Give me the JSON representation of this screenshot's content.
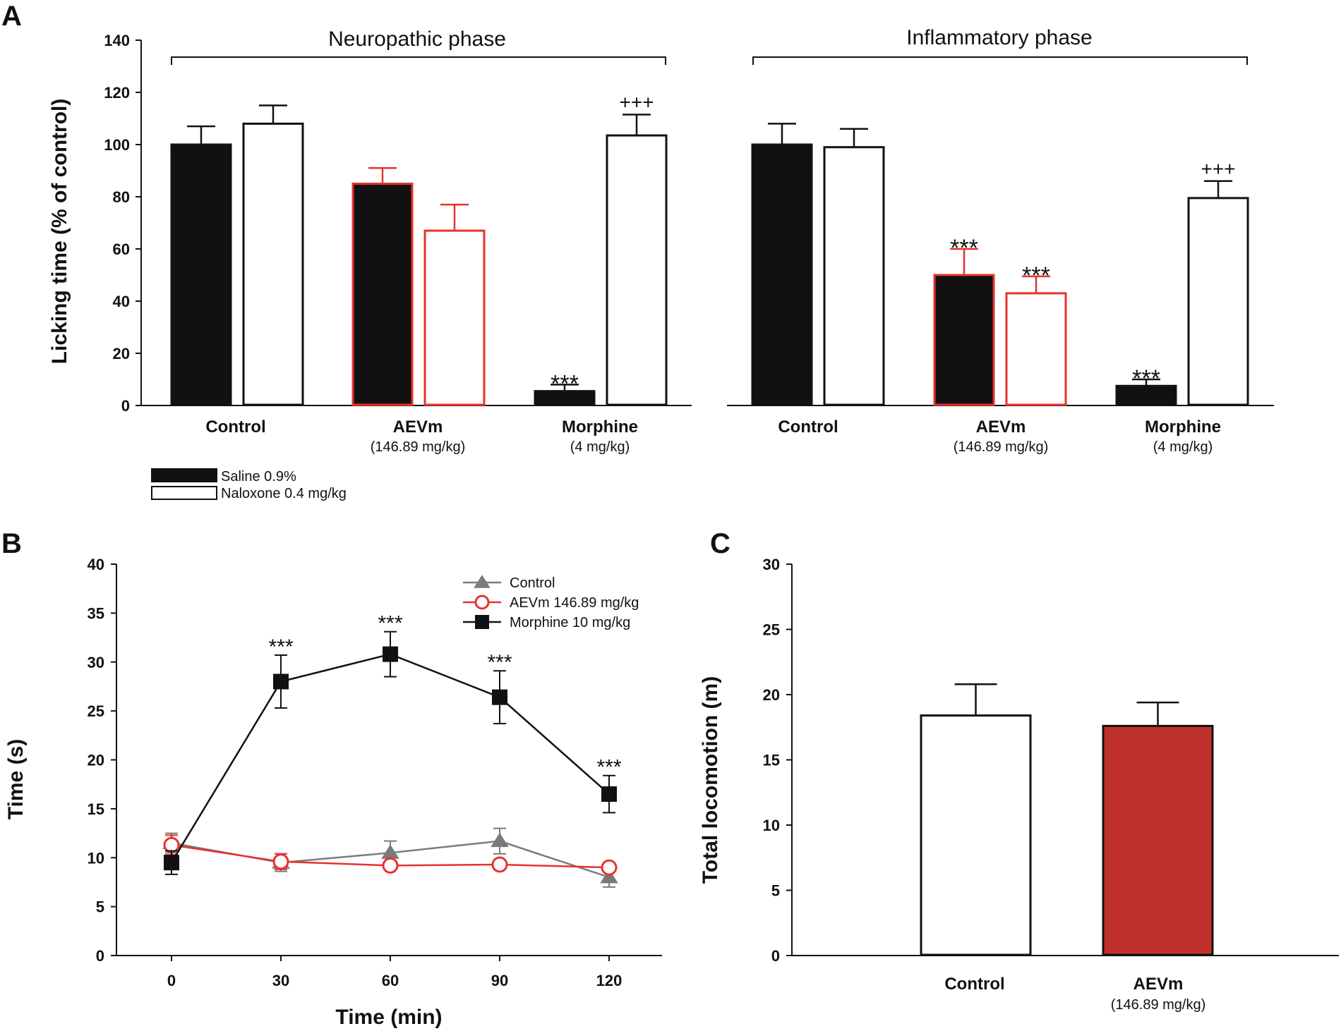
{
  "panels": {
    "a": "A",
    "b": "B",
    "c": "C"
  },
  "colors": {
    "saline": "#111111",
    "naloxone": "#ffffff",
    "aevm": "#e8322e",
    "aevm_fill": "#c0302a",
    "control_line": "#7a7a7a",
    "morphine_line": "#111111"
  },
  "chart_data": [
    {
      "id": "A",
      "type": "bar",
      "ylabel": "Licking time (% of control)",
      "ylim": [
        0,
        140
      ],
      "yticks": [
        "0",
        "20",
        "40",
        "60",
        "80",
        "100",
        "120",
        "140"
      ],
      "legend": [
        {
          "name": "Saline 0.9%",
          "fill": "saline"
        },
        {
          "name": "Naloxone 0.4 mg/kg",
          "fill": "naloxone"
        }
      ],
      "groups": [
        {
          "label": "Control",
          "sublabel": ""
        },
        {
          "label": "AEVm",
          "sublabel": "(146.89 mg/kg)"
        },
        {
          "label": "Morphine",
          "sublabel": "(4 mg/kg)"
        }
      ],
      "phases": [
        {
          "title": "Neuropathic phase",
          "bars": [
            {
              "group": 0,
              "series": "Saline 0.9%",
              "value": 100,
              "err": 7,
              "annot": ""
            },
            {
              "group": 0,
              "series": "Naloxone 0.4 mg/kg",
              "value": 108,
              "err": 7,
              "annot": ""
            },
            {
              "group": 1,
              "series": "Saline 0.9%",
              "value": 85,
              "err": 6,
              "annot": ""
            },
            {
              "group": 1,
              "series": "Naloxone 0.4 mg/kg",
              "value": 67,
              "err": 10,
              "annot": ""
            },
            {
              "group": 2,
              "series": "Saline 0.9%",
              "value": 5.5,
              "err": 2.5,
              "annot": "***"
            },
            {
              "group": 2,
              "series": "Naloxone 0.4 mg/kg",
              "value": 103.5,
              "err": 8,
              "annot": "+++"
            }
          ]
        },
        {
          "title": "Inflammatory phase",
          "bars": [
            {
              "group": 0,
              "series": "Saline 0.9%",
              "value": 100,
              "err": 8,
              "annot": ""
            },
            {
              "group": 0,
              "series": "Naloxone 0.4 mg/kg",
              "value": 99,
              "err": 7,
              "annot": ""
            },
            {
              "group": 1,
              "series": "Saline 0.9%",
              "value": 50,
              "err": 10,
              "annot": "***"
            },
            {
              "group": 1,
              "series": "Naloxone 0.4 mg/kg",
              "value": 43,
              "err": 6.5,
              "annot": "***"
            },
            {
              "group": 2,
              "series": "Saline 0.9%",
              "value": 7.5,
              "err": 2.5,
              "annot": "***"
            },
            {
              "group": 2,
              "series": "Naloxone 0.4 mg/kg",
              "value": 79.5,
              "err": 6.5,
              "annot": "+++"
            }
          ]
        }
      ]
    },
    {
      "id": "B",
      "type": "line",
      "xlabel": "Time (min)",
      "ylabel": "Time (s)",
      "x": [
        0,
        30,
        60,
        90,
        120
      ],
      "xticks": [
        "0",
        "30",
        "60",
        "90",
        "120"
      ],
      "ylim": [
        0,
        40
      ],
      "yticks": [
        "0",
        "5",
        "10",
        "15",
        "20",
        "25",
        "30",
        "35",
        "40"
      ],
      "series": [
        {
          "name": "Control",
          "marker": "triangle",
          "values": [
            11.5,
            9.5,
            10.5,
            11.7,
            8.0
          ],
          "err": [
            1.0,
            0.9,
            1.2,
            1.3,
            1.0
          ]
        },
        {
          "name": "AEVm 146.89 mg/kg",
          "marker": "circle",
          "values": [
            11.3,
            9.6,
            9.2,
            9.3,
            9.0
          ],
          "err": [
            1.0,
            0.8,
            0.0,
            0.0,
            0.0
          ]
        },
        {
          "name": "Morphine 10 mg/kg",
          "marker": "square",
          "values": [
            9.5,
            28.0,
            30.8,
            26.4,
            16.5
          ],
          "err": [
            1.2,
            2.7,
            2.3,
            2.7,
            1.9
          ]
        }
      ],
      "annotations": [
        {
          "x": 30,
          "text": "***"
        },
        {
          "x": 60,
          "text": "***"
        },
        {
          "x": 90,
          "text": "***"
        },
        {
          "x": 120,
          "text": "***"
        }
      ]
    },
    {
      "id": "C",
      "type": "bar",
      "ylabel": "Total locomotion (m)",
      "ylim": [
        0,
        30
      ],
      "yticks": [
        "0",
        "5",
        "10",
        "15",
        "20",
        "25",
        "30"
      ],
      "categories": [
        {
          "label": "Control",
          "sublabel": ""
        },
        {
          "label": "AEVm",
          "sublabel": "(146.89 mg/kg)"
        }
      ],
      "values": [
        18.4,
        17.6
      ],
      "err": [
        2.4,
        1.8
      ]
    }
  ]
}
